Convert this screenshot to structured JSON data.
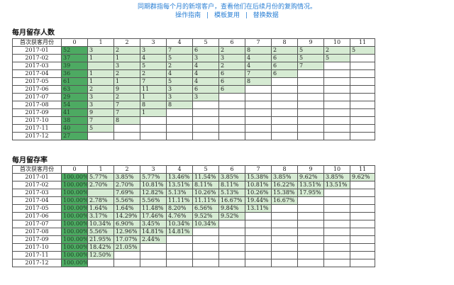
{
  "header": {
    "description": "同期群指每个月的新增客户，查看他们在后续月份的复购情况。",
    "links": [
      "操作指南",
      "模板复用",
      "替换数据"
    ]
  },
  "counts": {
    "title": "每月留存人数",
    "first_header": "首次获客月份",
    "columns": [
      "0",
      "1",
      "2",
      "3",
      "4",
      "5",
      "6",
      "7",
      "8",
      "9",
      "10",
      "11"
    ],
    "rows": [
      {
        "month": "2017-01",
        "values": [
          "52",
          "3",
          "2",
          "3",
          "7",
          "6",
          "2",
          "8",
          "2",
          "5",
          "2",
          "5"
        ]
      },
      {
        "month": "2017-02",
        "values": [
          "37",
          "1",
          "1",
          "4",
          "5",
          "3",
          "3",
          "4",
          "6",
          "5",
          "5"
        ]
      },
      {
        "month": "2017-03",
        "values": [
          "39",
          "",
          "3",
          "5",
          "2",
          "4",
          "2",
          "4",
          "6",
          "7"
        ]
      },
      {
        "month": "2017-04",
        "values": [
          "36",
          "1",
          "2",
          "2",
          "4",
          "4",
          "6",
          "7",
          "6"
        ]
      },
      {
        "month": "2017-05",
        "values": [
          "61",
          "1",
          "1",
          "7",
          "5",
          "4",
          "6",
          "8"
        ]
      },
      {
        "month": "2017-06",
        "values": [
          "63",
          "2",
          "9",
          "11",
          "3",
          "6",
          "6"
        ]
      },
      {
        "month": "2017-07",
        "values": [
          "29",
          "3",
          "2",
          "1",
          "3",
          "3"
        ]
      },
      {
        "month": "2017-08",
        "values": [
          "54",
          "3",
          "7",
          "8",
          "8"
        ]
      },
      {
        "month": "2017-09",
        "values": [
          "41",
          "9",
          "7",
          "1"
        ]
      },
      {
        "month": "2017-10",
        "values": [
          "38",
          "7",
          "8"
        ]
      },
      {
        "month": "2017-11",
        "values": [
          "40",
          "5"
        ]
      },
      {
        "month": "2017-12",
        "values": [
          "27"
        ]
      }
    ]
  },
  "rates": {
    "title": "每月留存率",
    "first_header": "首次获客月份",
    "columns": [
      "0",
      "1",
      "2",
      "3",
      "4",
      "5",
      "6",
      "7",
      "8",
      "9",
      "10",
      "11"
    ],
    "rows": [
      {
        "month": "2017-01",
        "values": [
          "100.00%",
          "5.77%",
          "3.85%",
          "5.77%",
          "13.46%",
          "11.54%",
          "3.85%",
          "15.38%",
          "3.85%",
          "9.62%",
          "3.85%",
          "9.62%"
        ]
      },
      {
        "month": "2017-02",
        "values": [
          "100.00%",
          "2.70%",
          "2.70%",
          "10.81%",
          "13.51%",
          "8.11%",
          "8.11%",
          "10.81%",
          "16.22%",
          "13.51%",
          "13.51%"
        ]
      },
      {
        "month": "2017-03",
        "values": [
          "100.00%",
          "",
          "7.69%",
          "12.82%",
          "5.13%",
          "10.26%",
          "5.13%",
          "10.26%",
          "15.38%",
          "17.95%"
        ]
      },
      {
        "month": "2017-04",
        "values": [
          "100.00%",
          "2.78%",
          "5.56%",
          "5.56%",
          "11.11%",
          "11.11%",
          "16.67%",
          "19.44%",
          "16.67%"
        ]
      },
      {
        "month": "2017-05",
        "values": [
          "100.00%",
          "1.64%",
          "1.64%",
          "11.48%",
          "8.20%",
          "6.56%",
          "9.84%",
          "13.11%"
        ]
      },
      {
        "month": "2017-06",
        "values": [
          "100.00%",
          "3.17%",
          "14.29%",
          "17.46%",
          "4.76%",
          "9.52%",
          "9.52%"
        ]
      },
      {
        "month": "2017-07",
        "values": [
          "100.00%",
          "10.34%",
          "6.90%",
          "3.45%",
          "10.34%",
          "10.34%"
        ]
      },
      {
        "month": "2017-08",
        "values": [
          "100.00%",
          "5.56%",
          "12.96%",
          "14.81%",
          "14.81%"
        ]
      },
      {
        "month": "2017-09",
        "values": [
          "100.00%",
          "21.95%",
          "17.07%",
          "2.44%"
        ]
      },
      {
        "month": "2017-10",
        "values": [
          "100.00%",
          "18.42%",
          "21.05%"
        ]
      },
      {
        "month": "2017-11",
        "values": [
          "100.00%",
          "12.50%"
        ]
      },
      {
        "month": "2017-12",
        "values": [
          "100.00%"
        ]
      }
    ]
  },
  "colors": {
    "first_col": "#4daa62",
    "filled": "#d6ebd3",
    "link": "#2a7fd4"
  }
}
